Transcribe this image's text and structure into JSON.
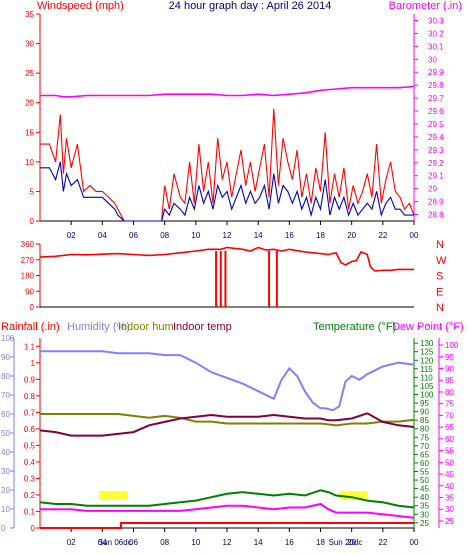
{
  "colors": {
    "background": "#ffffff",
    "wind": "#ff0000",
    "wind_avg": "#0000c0",
    "barometer": "#ff00ff",
    "direction": "#ff0000",
    "rain": "#ff0000",
    "humidity": "#8080ff",
    "indoor_hum": "#808000",
    "indoor_temp": "#800040",
    "temperature": "#008000",
    "dew_point": "#ff00ff",
    "text_blue": "#000080",
    "x_tick": "#000080",
    "highlight": "#ffff00"
  },
  "chart_data": [
    {
      "type": "line",
      "id": "wind-barometer",
      "title": "24 hour graph day : April 26 2014",
      "left_axis_label": "Windspeed (mph)",
      "right_axis_label": "Barometer (.in)",
      "left_ticks": [
        "0",
        "5",
        "10",
        "15",
        "20",
        "25",
        "30",
        "35"
      ],
      "left_ylim": [
        0,
        35
      ],
      "right_ticks": [
        "28.8",
        "28.9",
        "29",
        "29.1",
        "29.2",
        "29.3",
        "29.4",
        "29.5",
        "29.6",
        "29.7",
        "29.8",
        "29.9",
        "30",
        "30.1",
        "30.2",
        "30.3"
      ],
      "right_ylim": [
        28.75,
        30.35
      ],
      "x_ticks": [
        "02",
        "04",
        "06",
        "08",
        "10",
        "12",
        "14",
        "16",
        "18",
        "20",
        "22",
        "00"
      ],
      "xlim": [
        0,
        24
      ],
      "series": [
        {
          "key": "gust",
          "x": [
            0,
            0.6,
            1,
            1.3,
            1.5,
            1.7,
            2,
            2.4,
            2.8,
            3.2,
            3.6,
            4,
            4.4,
            4.8,
            5,
            5.4,
            5.8,
            6.2,
            6.6,
            7,
            7.2,
            7.5,
            7.8,
            8,
            8.3,
            8.6,
            9,
            9.3,
            9.6,
            9.9,
            10.2,
            10.5,
            10.8,
            11.1,
            11.4,
            11.7,
            12,
            12.3,
            12.6,
            12.9,
            13.2,
            13.5,
            13.8,
            14.1,
            14.4,
            14.7,
            15,
            15.3,
            15.6,
            15.9,
            16.2,
            16.5,
            16.8,
            17.1,
            17.4,
            17.7,
            18,
            18.3,
            18.6,
            18.9,
            19.2,
            19.5,
            19.8,
            20.1,
            20.4,
            20.7,
            21,
            21.3,
            21.6,
            21.9,
            22.2,
            22.5,
            22.8,
            23.1,
            23.4,
            23.7,
            24
          ],
          "values": [
            13,
            13,
            10,
            18,
            8,
            14,
            9,
            13,
            5,
            6,
            5,
            5,
            4,
            3,
            2,
            0,
            0,
            0,
            0,
            0,
            0,
            0,
            0,
            6,
            2,
            8,
            4,
            3,
            10,
            3,
            13,
            5,
            10,
            3,
            14,
            7,
            10,
            4,
            8,
            12,
            6,
            10,
            5,
            9,
            13,
            4,
            19,
            6,
            14,
            10,
            7,
            12,
            4,
            8,
            3,
            9,
            5,
            15,
            3,
            8,
            4,
            9,
            2,
            6,
            3,
            5,
            8,
            4,
            13,
            3,
            7,
            10,
            5,
            4,
            2,
            3,
            1
          ]
        },
        {
          "key": "avg",
          "x": [
            0,
            0.6,
            1,
            1.3,
            1.5,
            1.7,
            2,
            2.4,
            2.8,
            3.2,
            3.6,
            4,
            4.4,
            4.8,
            5,
            5.4,
            5.8,
            6.2,
            6.6,
            7,
            7.2,
            7.5,
            7.8,
            8,
            8.3,
            8.6,
            9,
            9.3,
            9.6,
            9.9,
            10.2,
            10.5,
            10.8,
            11.1,
            11.4,
            11.7,
            12,
            12.3,
            12.6,
            12.9,
            13.2,
            13.5,
            13.8,
            14.1,
            14.4,
            14.7,
            15,
            15.3,
            15.6,
            15.9,
            16.2,
            16.5,
            16.8,
            17.1,
            17.4,
            17.7,
            18,
            18.3,
            18.6,
            18.9,
            19.2,
            19.5,
            19.8,
            20.1,
            20.4,
            20.7,
            21,
            21.3,
            21.6,
            21.9,
            22.2,
            22.5,
            22.8,
            23.1,
            23.4,
            23.7,
            24
          ],
          "values": [
            9,
            9,
            7,
            10,
            5,
            8,
            6,
            7,
            4,
            4,
            4,
            4,
            3,
            2,
            1,
            0,
            0,
            0,
            0,
            0,
            0,
            0,
            0,
            2,
            1,
            3,
            2,
            1,
            4,
            2,
            6,
            3,
            5,
            2,
            6,
            4,
            5,
            2,
            4,
            6,
            3,
            5,
            3,
            4,
            6,
            2,
            8,
            3,
            6,
            5,
            3,
            5,
            2,
            4,
            1,
            4,
            2,
            7,
            1,
            4,
            2,
            4,
            1,
            3,
            1,
            2,
            3,
            2,
            5,
            1,
            3,
            4,
            2,
            2,
            1,
            1,
            1
          ]
        },
        {
          "key": "baro",
          "x": [
            0,
            1,
            1.5,
            2,
            3,
            4,
            5,
            6,
            7,
            8,
            9,
            10,
            11,
            12,
            13,
            14,
            15,
            16,
            17,
            18,
            19,
            20,
            21,
            22,
            23,
            24
          ],
          "values": [
            29.72,
            29.72,
            29.71,
            29.71,
            29.72,
            29.72,
            29.72,
            29.72,
            29.72,
            29.73,
            29.73,
            29.73,
            29.73,
            29.72,
            29.72,
            29.73,
            29.72,
            29.73,
            29.74,
            29.76,
            29.77,
            29.78,
            29.78,
            29.78,
            29.78,
            29.79
          ]
        }
      ]
    },
    {
      "type": "line",
      "id": "wind-direction",
      "left_ticks": [
        "360",
        "270",
        "180",
        "90",
        "0"
      ],
      "left_ylim": [
        0,
        360
      ],
      "right_labels": [
        "N",
        "W",
        "S",
        "E",
        "N"
      ],
      "x": [
        0,
        1,
        2,
        3,
        4,
        5,
        6,
        7,
        8,
        9,
        10,
        10.8,
        11.2,
        11.6,
        12,
        12.5,
        13,
        13.5,
        14,
        14.5,
        15,
        15.5,
        16,
        17,
        18,
        18.5,
        19,
        19.3,
        19.6,
        20,
        20.3,
        20.6,
        21,
        21.2,
        21.5,
        22,
        22.5,
        23,
        24
      ],
      "values": [
        285,
        290,
        300,
        298,
        302,
        305,
        300,
        295,
        300,
        310,
        320,
        330,
        330,
        330,
        340,
        335,
        330,
        320,
        340,
        325,
        330,
        320,
        330,
        315,
        305,
        300,
        310,
        255,
        240,
        260,
        265,
        315,
        300,
        230,
        205,
        210,
        210,
        215,
        215
      ],
      "dips": [
        11.3,
        11.6,
        11.9,
        14.7,
        15.2
      ]
    },
    {
      "type": "line",
      "id": "temperature-humidity",
      "legend": {
        "rain_label": "Rainfall (.in)",
        "humidity_label": "Humidity (%)",
        "indoor_hum_label": "Indoor hum",
        "indoor_temp_label": "Indoor temp",
        "temperature_label": "Temperature (°F)",
        "dewpoint_label": "Dew Point (°F)"
      },
      "left_outer_ticks": [
        "0",
        "10",
        "20",
        "30",
        "40",
        "50",
        "60",
        "70",
        "80",
        "90",
        "100"
      ],
      "left_outer_ylim": [
        0,
        100
      ],
      "left_inner_ticks": [
        "0",
        "0.1",
        "0.2",
        "0.3",
        "0.4",
        "0.5",
        "0.6",
        "0.7",
        "0.8",
        "0.9",
        "1",
        "1.1"
      ],
      "left_inner_ylim": [
        0,
        1.15
      ],
      "right_inner_ticks": [
        "25",
        "30",
        "35",
        "40",
        "45",
        "50",
        "55",
        "60",
        "65",
        "70",
        "75",
        "80",
        "85",
        "90",
        "95",
        "100",
        "105",
        "110",
        "115",
        "120",
        "125",
        "130"
      ],
      "right_inner_ylim": [
        22,
        133
      ],
      "right_outer_ticks": [
        "25",
        "30",
        "35",
        "40",
        "45",
        "50",
        "55",
        "60",
        "65",
        "70",
        "75",
        "80",
        "85",
        "90",
        "95",
        "100"
      ],
      "right_outer_ylim": [
        22,
        103
      ],
      "day_labels": [
        {
          "x": 4.8,
          "text": "Sun 06dc"
        },
        {
          "x": 19.6,
          "text": "Sun 20dc"
        }
      ],
      "highlights": [
        {
          "x0": 3.8,
          "x1": 5.6
        },
        {
          "x0": 19.2,
          "x1": 21.0
        }
      ],
      "series": [
        {
          "key": "humidity",
          "x": [
            0,
            1,
            2,
            3,
            4,
            5,
            6,
            7,
            8,
            9,
            10,
            11,
            12,
            13,
            14,
            15,
            15.5,
            16,
            16.5,
            17,
            17.5,
            18,
            18.3,
            18.8,
            19.2,
            19.6,
            20,
            20.5,
            21,
            21.5,
            22,
            23,
            24
          ],
          "values": [
            93,
            93,
            93,
            93,
            93,
            92,
            92,
            92,
            91,
            91,
            87,
            82,
            79,
            76,
            72,
            68,
            78,
            84,
            80,
            72,
            66,
            63,
            63,
            62,
            64,
            77,
            80,
            78,
            81,
            83,
            85,
            87,
            86
          ]
        },
        {
          "key": "indoor_hum",
          "x": [
            0,
            1,
            2,
            3,
            4,
            5,
            6,
            7,
            8,
            9,
            10,
            11,
            12,
            13,
            14,
            15,
            16,
            17,
            18,
            19,
            20,
            21,
            22,
            23,
            24
          ],
          "values": [
            60,
            60,
            60,
            60,
            60,
            60,
            59,
            58,
            59,
            58,
            56,
            56,
            55,
            55,
            55,
            55,
            55,
            55,
            55,
            54,
            55,
            55,
            56,
            56,
            57
          ]
        },
        {
          "key": "indoor_temp",
          "x": [
            0,
            1,
            2,
            3,
            4,
            5,
            6,
            7,
            8,
            9,
            10,
            11,
            12,
            13,
            14,
            15,
            16,
            17,
            18,
            18.5,
            19,
            20,
            21,
            22,
            23,
            24
          ],
          "values": [
            79,
            78,
            76,
            76,
            76,
            77,
            78,
            82,
            84,
            86,
            87,
            88,
            87,
            87,
            87,
            88,
            87,
            86,
            86,
            85,
            85,
            86,
            89,
            84,
            82,
            81
          ]
        },
        {
          "key": "temperature",
          "x": [
            0,
            1,
            2,
            3,
            4,
            5,
            6,
            7,
            8,
            9,
            10,
            11,
            12,
            13,
            14,
            15,
            16,
            17,
            18,
            18.5,
            19,
            20,
            21,
            22,
            23,
            24
          ],
          "values": [
            37,
            36,
            36,
            35,
            35,
            35,
            35,
            35,
            36,
            37,
            38,
            40,
            42,
            43,
            42,
            41,
            42,
            41,
            44,
            43,
            41,
            40,
            38,
            37,
            35,
            34
          ]
        },
        {
          "key": "dewpoint",
          "x": [
            0,
            1,
            2,
            3,
            4,
            5,
            6,
            7,
            8,
            9,
            10,
            11,
            12,
            13,
            14,
            15,
            16,
            17,
            18,
            18.5,
            19,
            20,
            21,
            22,
            23,
            24
          ],
          "values": [
            33,
            33,
            33,
            32,
            32,
            32,
            32,
            32,
            32,
            32,
            33,
            34,
            35,
            35,
            34,
            33,
            34,
            34,
            36,
            33,
            31,
            31,
            31,
            30,
            29,
            28
          ]
        },
        {
          "key": "rain",
          "x": [
            0,
            5.2,
            5.2,
            24
          ],
          "values": [
            0,
            0,
            0.03,
            0.03
          ]
        }
      ]
    }
  ]
}
